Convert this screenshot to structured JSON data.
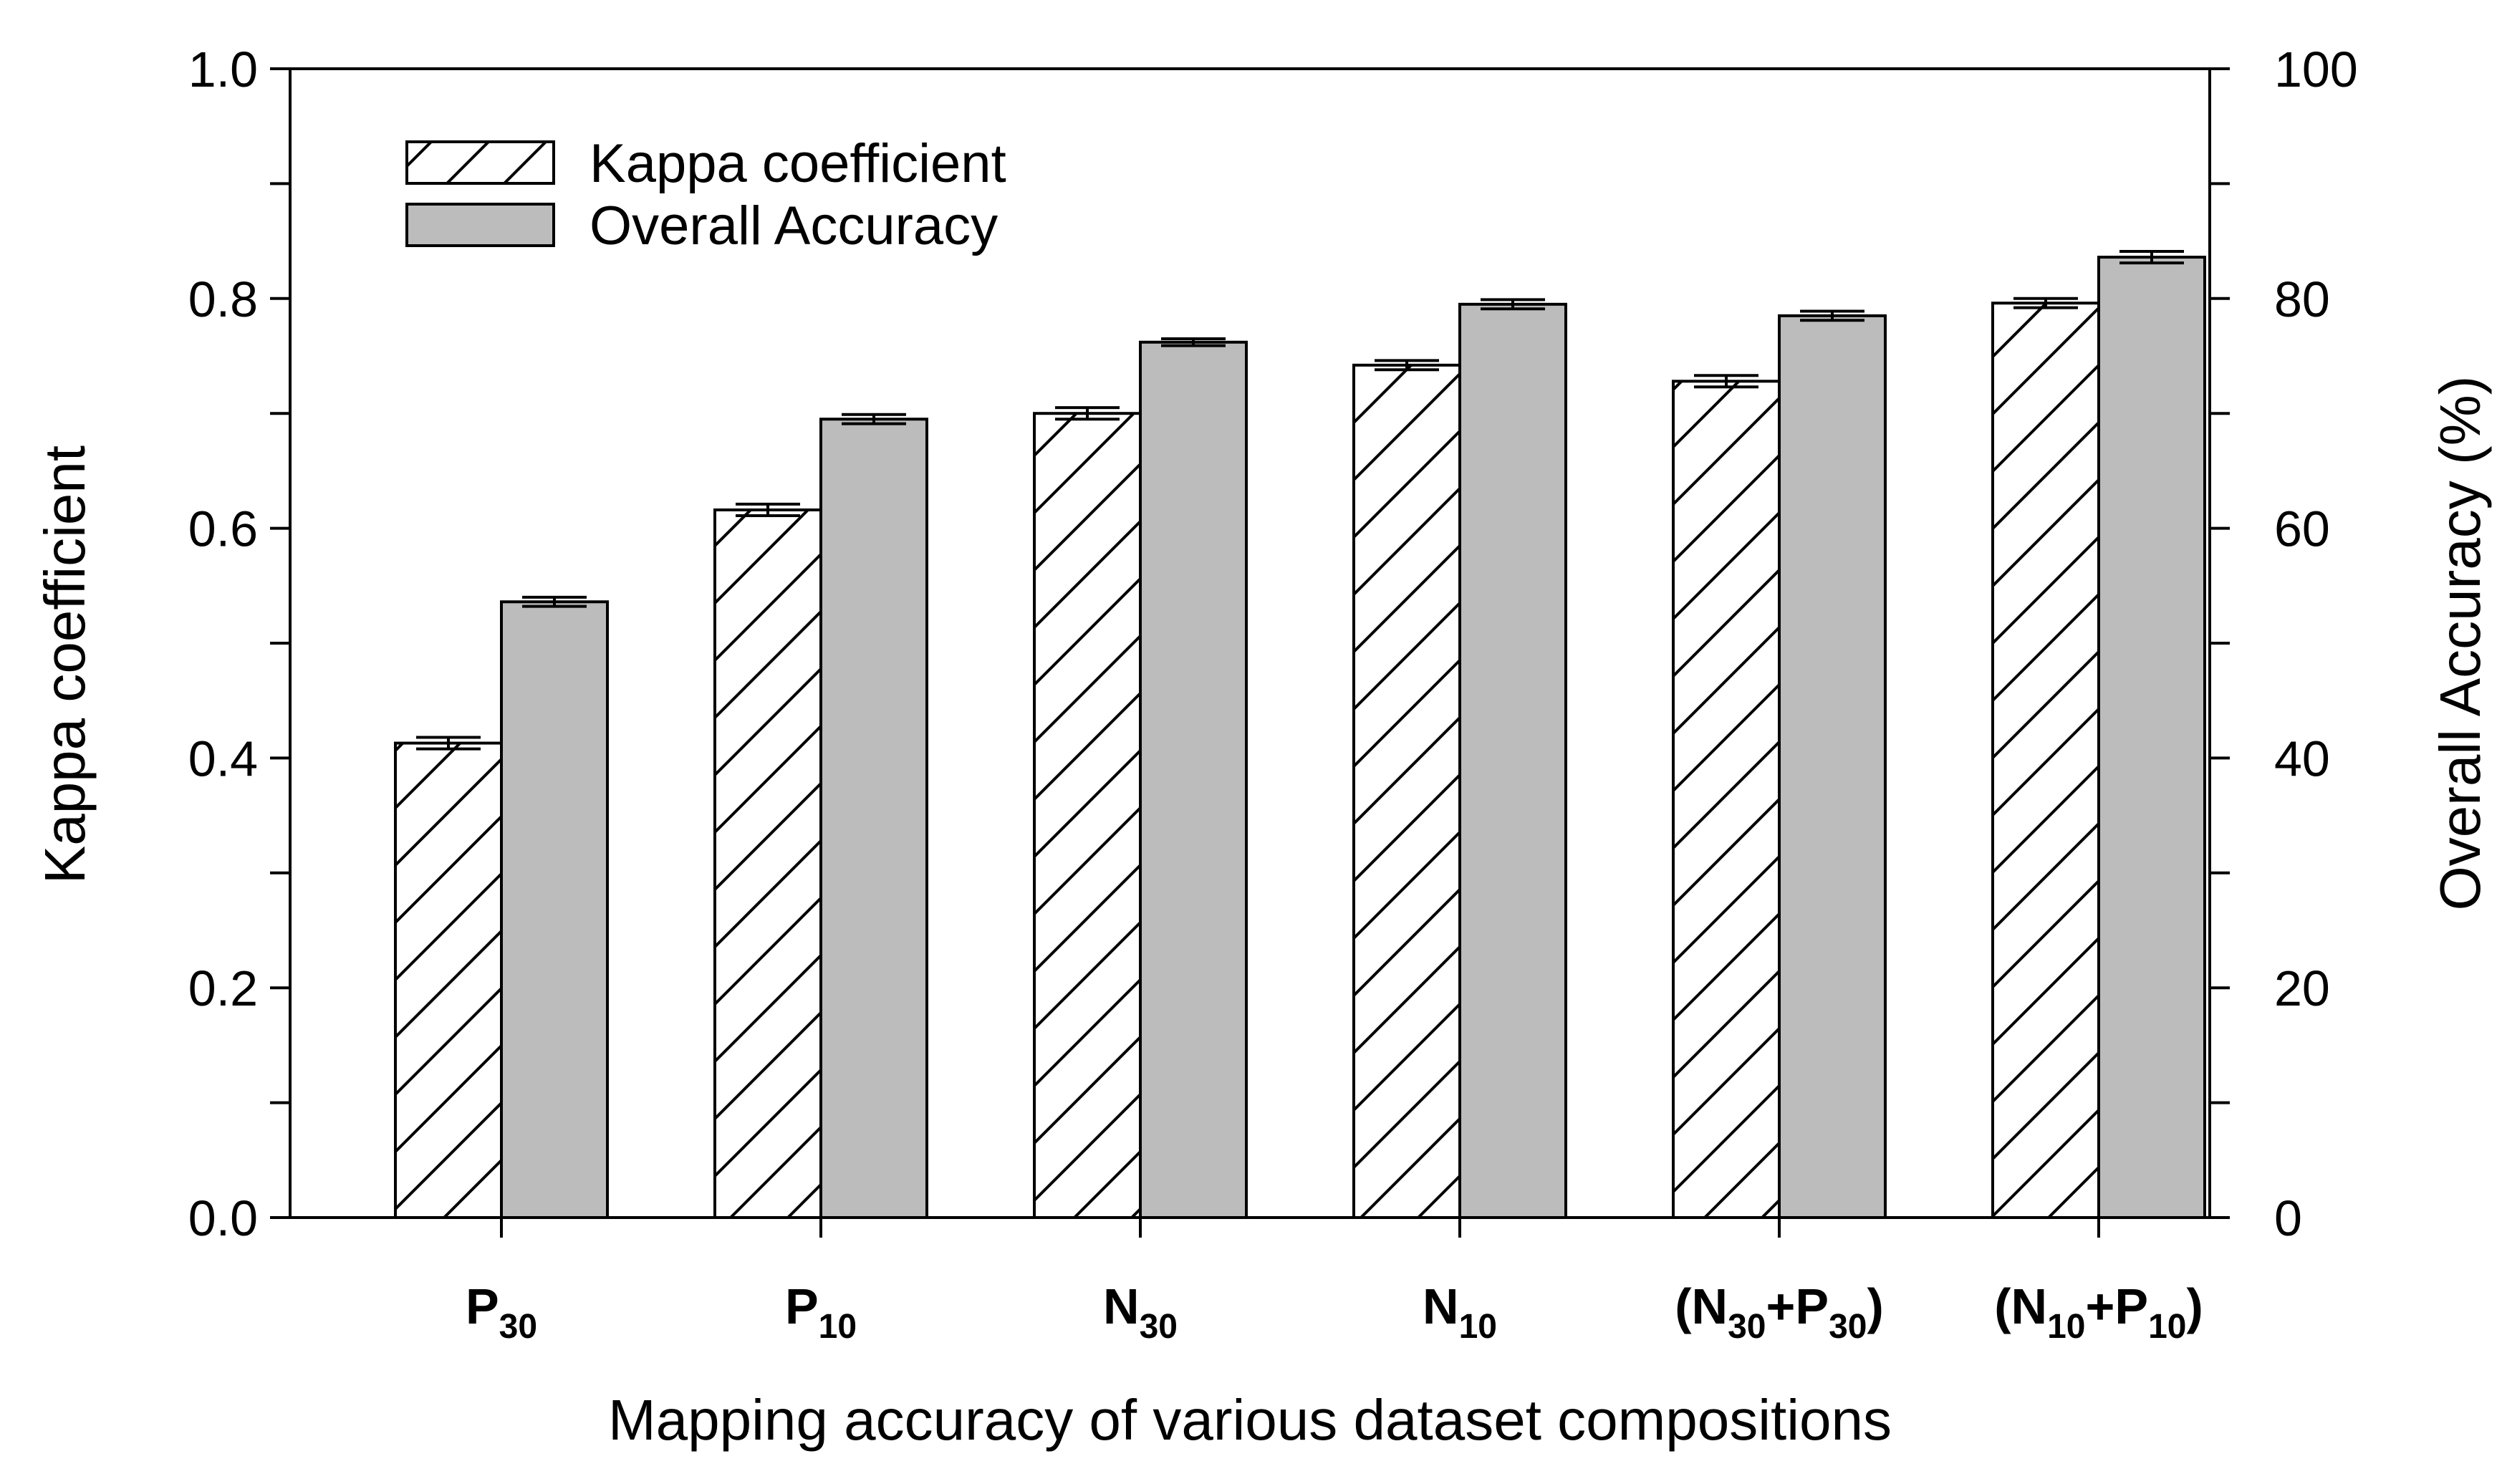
{
  "chart_data": {
    "type": "bar",
    "xlabel": "Mapping accuracy of various dataset compositions",
    "ylabel_left": "Kappa coefficient",
    "ylabel_right": "Overall Accuracy (%)",
    "ylim_left": [
      0,
      1.0
    ],
    "ylim_right": [
      0,
      100
    ],
    "yticks_left": [
      "0.0",
      "0.2",
      "0.4",
      "0.6",
      "0.8",
      "1.0"
    ],
    "yticks_right": [
      "0",
      "20",
      "40",
      "60",
      "80",
      "100"
    ],
    "legend_position": "top-left",
    "grid": false,
    "categories": [
      {
        "parts": [
          {
            "t": "P",
            "sub": false
          },
          {
            "t": "30",
            "sub": true
          }
        ]
      },
      {
        "parts": [
          {
            "t": "P",
            "sub": false
          },
          {
            "t": "10",
            "sub": true
          }
        ]
      },
      {
        "parts": [
          {
            "t": "N",
            "sub": false
          },
          {
            "t": "30",
            "sub": true
          }
        ]
      },
      {
        "parts": [
          {
            "t": "N",
            "sub": false
          },
          {
            "t": "10",
            "sub": true
          }
        ]
      },
      {
        "parts": [
          {
            "t": "(N",
            "sub": false
          },
          {
            "t": "30",
            "sub": true
          },
          {
            "t": "+P",
            "sub": false
          },
          {
            "t": "30",
            "sub": true
          },
          {
            "t": ")",
            "sub": false
          }
        ]
      },
      {
        "parts": [
          {
            "t": "(N",
            "sub": false
          },
          {
            "t": "10",
            "sub": true
          },
          {
            "t": "+P",
            "sub": false
          },
          {
            "t": "10",
            "sub": true
          },
          {
            "t": ")",
            "sub": false
          }
        ]
      }
    ],
    "series": [
      {
        "name": "Kappa coefficient",
        "axis": "left",
        "style": "hatched",
        "values": [
          0.413,
          0.616,
          0.7,
          0.742,
          0.728,
          0.796
        ],
        "errors": [
          0.005,
          0.005,
          0.005,
          0.004,
          0.005,
          0.004
        ]
      },
      {
        "name": "Overall Accuracy",
        "axis": "right",
        "style": "gray",
        "values": [
          53.6,
          69.5,
          76.2,
          79.5,
          78.5,
          83.6
        ],
        "errors": [
          0.4,
          0.4,
          0.3,
          0.4,
          0.4,
          0.5
        ]
      }
    ],
    "colors": {
      "gray_fill": "#bcbcbc",
      "hatch_stroke": "#000000",
      "axis": "#000000"
    }
  }
}
